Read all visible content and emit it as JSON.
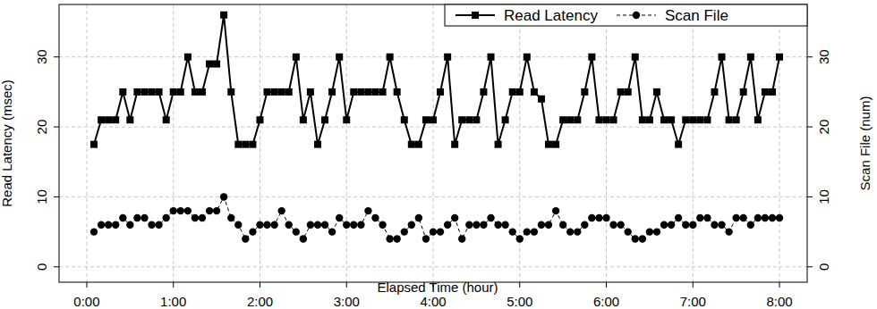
{
  "chart_data": {
    "type": "line",
    "x_label": "Elapsed Time (hour)",
    "y_label": "Read Latency (msec)",
    "y2_label": "Scan File (num)",
    "x": [
      0.083,
      0.167,
      0.25,
      0.333,
      0.417,
      0.5,
      0.583,
      0.667,
      0.75,
      0.833,
      0.917,
      1,
      1.083,
      1.167,
      1.25,
      1.333,
      1.417,
      1.5,
      1.583,
      1.667,
      1.75,
      1.833,
      1.917,
      2,
      2.083,
      2.167,
      2.25,
      2.333,
      2.417,
      2.5,
      2.583,
      2.667,
      2.75,
      2.833,
      2.917,
      3,
      3.083,
      3.167,
      3.25,
      3.333,
      3.417,
      3.5,
      3.583,
      3.667,
      3.75,
      3.833,
      3.917,
      4,
      4.083,
      4.167,
      4.25,
      4.333,
      4.417,
      4.5,
      4.583,
      4.667,
      4.75,
      4.833,
      4.917,
      5,
      5.083,
      5.167,
      5.25,
      5.333,
      5.417,
      5.5,
      5.583,
      5.667,
      5.75,
      5.833,
      5.917,
      6,
      6.083,
      6.167,
      6.25,
      6.333,
      6.417,
      6.5,
      6.583,
      6.667,
      6.75,
      6.833,
      6.917,
      7,
      7.083,
      7.167,
      7.25,
      7.333,
      7.417,
      7.5,
      7.583,
      7.667,
      7.75,
      7.833,
      7.917,
      8
    ],
    "series": [
      {
        "name": "Read Latency",
        "color": "#000000",
        "marker": "square",
        "line_style": "solid",
        "axis": "y",
        "values": [
          17.5,
          21,
          21,
          21,
          25,
          21,
          25,
          25,
          25,
          25,
          21,
          25,
          25,
          30,
          25,
          25,
          29,
          29,
          36,
          25,
          17.5,
          17.5,
          17.5,
          21,
          25,
          25,
          25,
          25,
          30,
          21,
          25,
          17.5,
          21,
          25,
          30,
          21,
          25,
          25,
          25,
          25,
          25,
          30,
          25,
          21,
          17.5,
          17.5,
          21,
          21,
          25,
          30,
          17.5,
          21,
          21,
          21,
          25,
          30,
          17.5,
          21,
          25,
          25,
          30,
          25,
          24,
          17.5,
          17.5,
          21,
          21,
          21,
          25,
          30,
          21,
          21,
          21,
          25,
          25,
          30,
          21,
          21,
          25,
          21,
          21,
          17.5,
          21,
          21,
          21,
          21,
          25,
          30,
          21,
          21,
          25,
          30,
          21,
          25,
          25,
          30
        ]
      },
      {
        "name": "Scan File",
        "color": "#000000",
        "marker": "circle",
        "line_style": "dashed",
        "axis": "y2",
        "values": [
          5,
          6,
          6,
          6,
          7,
          6,
          7,
          7,
          6,
          6,
          7,
          8,
          8,
          8,
          7,
          7,
          8,
          8,
          10,
          7,
          6,
          4,
          5,
          6,
          6,
          6,
          8,
          6,
          5,
          4,
          6,
          6,
          6,
          5,
          7,
          6,
          6,
          6,
          8,
          7,
          6,
          4,
          4,
          5,
          6,
          7,
          4,
          5,
          5,
          6,
          7,
          4,
          6,
          6,
          6,
          7,
          6,
          6,
          5,
          4,
          5,
          5,
          6,
          6,
          8,
          6,
          5,
          5,
          6,
          7,
          7,
          7,
          6,
          6,
          5,
          4,
          4,
          5,
          5,
          6,
          6,
          7,
          6,
          6,
          7,
          7,
          6,
          6,
          5,
          7,
          7,
          6,
          7,
          7,
          7,
          7
        ]
      }
    ],
    "xlim": [
      -0.32,
      8.32
    ],
    "xticks": [
      {
        "value": 0,
        "label": "0:00"
      },
      {
        "value": 1,
        "label": "1:00"
      },
      {
        "value": 2,
        "label": "2:00"
      },
      {
        "value": 3,
        "label": "3:00"
      },
      {
        "value": 4,
        "label": "4:00"
      },
      {
        "value": 5,
        "label": "5:00"
      },
      {
        "value": 6,
        "label": "6:00"
      },
      {
        "value": 7,
        "label": "7:00"
      },
      {
        "value": 8,
        "label": "8:00"
      }
    ],
    "ylim": [
      -2.2,
      37.5
    ],
    "yticks": [
      0,
      10,
      20,
      30
    ],
    "y2lim": [
      -2.2,
      37.5
    ],
    "y2ticks": [
      0,
      10,
      20,
      30
    ],
    "grid": true,
    "legend": "top-right"
  }
}
